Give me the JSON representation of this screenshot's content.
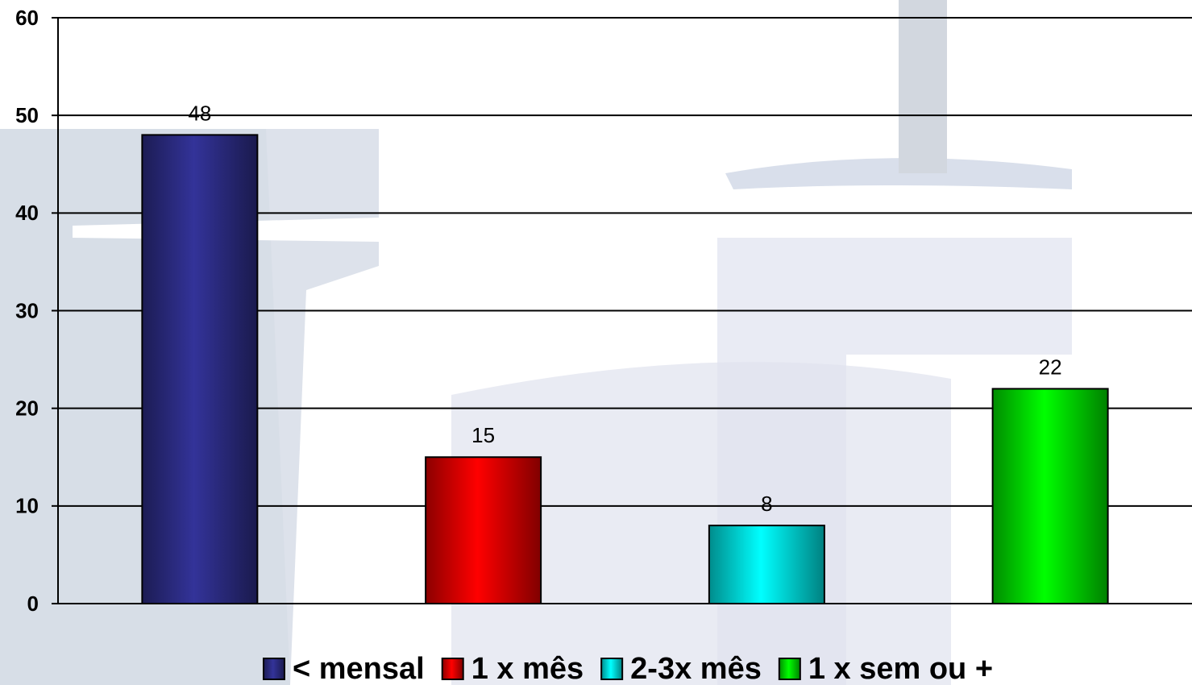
{
  "chart_data": {
    "type": "bar",
    "series": [
      {
        "name": "< mensal",
        "color": "#333399",
        "values": [
          48
        ]
      },
      {
        "name": "1 x mês",
        "color": "#ff0000",
        "values": [
          15
        ]
      },
      {
        "name": "2-3x mês",
        "color": "#00ffff",
        "values": [
          8
        ]
      },
      {
        "name": "1 x sem ou +",
        "color": "#00ff00",
        "values": [
          22
        ]
      }
    ],
    "ylim": [
      0,
      60
    ],
    "yticks": [
      0,
      10,
      20,
      30,
      40,
      50,
      60
    ],
    "grid": true,
    "legend": "bottom"
  }
}
